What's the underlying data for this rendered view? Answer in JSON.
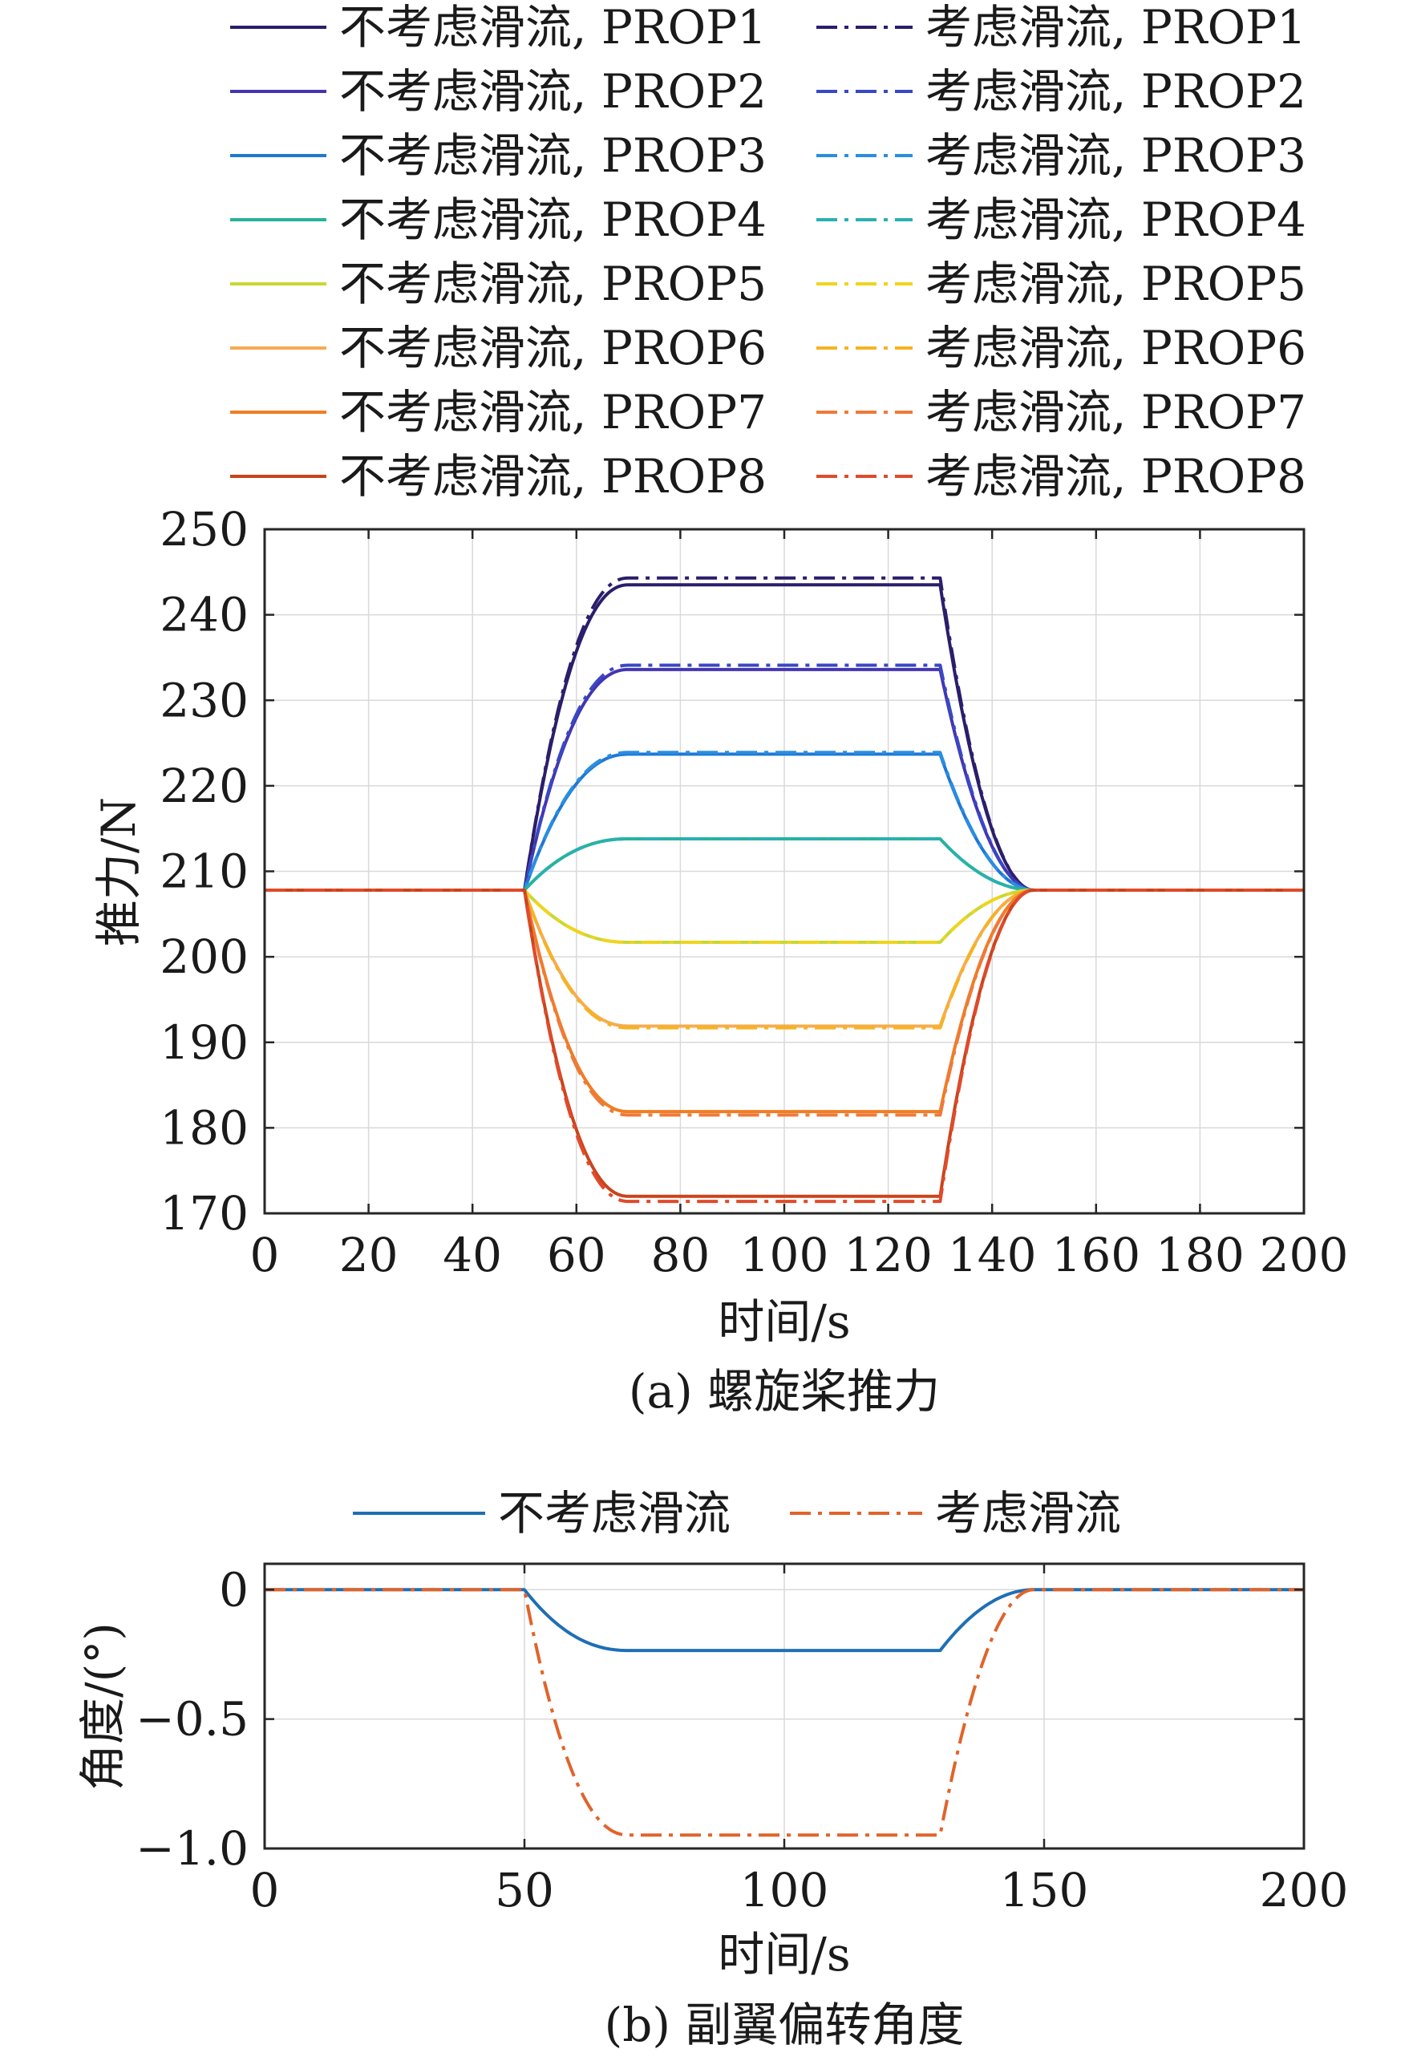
{
  "figure": {
    "chart_a_caption": "(a) 螺旋桨推力",
    "chart_b_caption": "(b) 副翼偏转角度"
  },
  "chart_data": [
    {
      "type": "line",
      "title": "",
      "xlabel": "时间/s",
      "ylabel": "推力/N",
      "xlim": [
        0,
        200
      ],
      "ylim": [
        170,
        250
      ],
      "xticks": [
        0,
        20,
        40,
        60,
        80,
        100,
        120,
        140,
        160,
        180,
        200
      ],
      "yticks": [
        170,
        180,
        190,
        200,
        210,
        220,
        230,
        240,
        250
      ],
      "grid": true,
      "legend_position": "top",
      "transition": {
        "start": 50,
        "rise_end": 70,
        "fall_start": 130,
        "settle": 148
      },
      "series": [
        {
          "name": "不考虑滑流, PROP1",
          "style": "solid",
          "color": "#2b1e6b",
          "base": 207.8,
          "plateau": 243.5
        },
        {
          "name": "考虑滑流, PROP1",
          "style": "dashdot",
          "color": "#2b1e6b",
          "base": 207.8,
          "plateau": 244.3
        },
        {
          "name": "不考虑滑流, PROP2",
          "style": "solid",
          "color": "#4335b0",
          "base": 207.8,
          "plateau": 233.6
        },
        {
          "name": "考虑滑流, PROP2",
          "style": "dashdot",
          "color": "#3948c4",
          "base": 207.8,
          "plateau": 234.1
        },
        {
          "name": "不考虑滑流, PROP3",
          "style": "solid",
          "color": "#1e78d6",
          "base": 207.8,
          "plateau": 223.7
        },
        {
          "name": "考虑滑流, PROP3",
          "style": "dashdot",
          "color": "#2a8ee0",
          "base": 207.8,
          "plateau": 223.9
        },
        {
          "name": "不考虑滑流, PROP4",
          "style": "solid",
          "color": "#26b39a",
          "base": 207.8,
          "plateau": 213.8
        },
        {
          "name": "考虑滑流, PROP4",
          "style": "dashdot",
          "color": "#2ab0b0",
          "base": 207.8,
          "plateau": 213.8
        },
        {
          "name": "不考虑滑流, PROP5",
          "style": "solid",
          "color": "#c8d835",
          "base": 207.8,
          "plateau": 201.7
        },
        {
          "name": "考虑滑流, PROP5",
          "style": "dashdot",
          "color": "#f0d41e",
          "base": 207.8,
          "plateau": 201.7
        },
        {
          "name": "不考虑滑流, PROP6",
          "style": "solid",
          "color": "#f5ac50",
          "base": 207.8,
          "plateau": 191.9
        },
        {
          "name": "考虑滑流, PROP6",
          "style": "dashdot",
          "color": "#f5b324",
          "base": 207.8,
          "plateau": 191.7
        },
        {
          "name": "不考虑滑流, PROP7",
          "style": "solid",
          "color": "#f07d24",
          "base": 207.8,
          "plateau": 181.9
        },
        {
          "name": "考虑滑流, PROP7",
          "style": "dashdot",
          "color": "#ee7a3a",
          "base": 207.8,
          "plateau": 181.5
        },
        {
          "name": "不考虑滑流, PROP8",
          "style": "solid",
          "color": "#c9441c",
          "base": 207.8,
          "plateau": 172.0
        },
        {
          "name": "考虑滑流, PROP8",
          "style": "dashdot",
          "color": "#e04a2b",
          "base": 207.8,
          "plateau": 171.4
        }
      ]
    },
    {
      "type": "line",
      "title": "",
      "xlabel": "时间/s",
      "ylabel": "角度/(°)",
      "xlim": [
        0,
        200
      ],
      "ylim": [
        -1.0,
        0.1
      ],
      "xticks": [
        0,
        50,
        100,
        150,
        200
      ],
      "yticks": [
        0,
        -0.5,
        -1.0
      ],
      "ytick_labels": [
        "0",
        "−0.5",
        "−1.0"
      ],
      "grid": true,
      "legend_position": "top",
      "transition": {
        "start": 50,
        "rise_end": 70,
        "fall_start": 130,
        "settle": 148
      },
      "series": [
        {
          "name": "不考虑滑流",
          "style": "solid",
          "color": "#1f6fb4",
          "base": 0,
          "plateau": -0.235
        },
        {
          "name": "考虑滑流",
          "style": "dashdot",
          "color": "#e0642b",
          "base": 0,
          "plateau": -0.948
        }
      ]
    }
  ]
}
